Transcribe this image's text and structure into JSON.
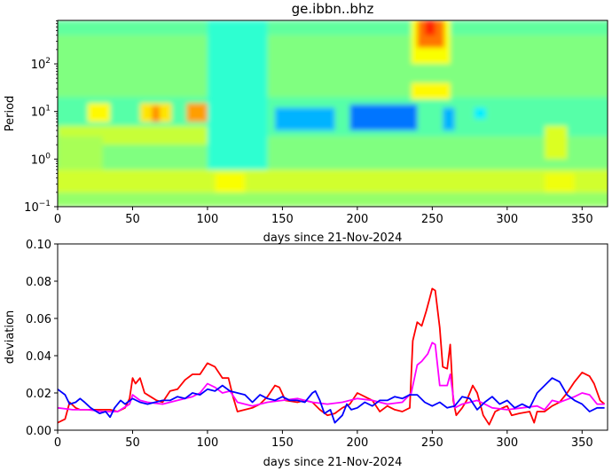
{
  "chart_data": [
    {
      "type": "heatmap",
      "title": "ge.ibbn..bhz",
      "xlabel": "days since 21-Nov-2024",
      "ylabel": "Period",
      "xlim": [
        0,
        367
      ],
      "ylim": [
        0.1,
        820
      ],
      "yscale": "log",
      "xticks": [
        "0",
        "50",
        "100",
        "150",
        "200",
        "250",
        "300",
        "350"
      ],
      "yticks": [
        {
          "base": "10",
          "exp": "−1",
          "value": 0.1
        },
        {
          "base": "10",
          "exp": "0",
          "value": 1
        },
        {
          "base": "10",
          "exp": "1",
          "value": 10
        },
        {
          "base": "10",
          "exp": "2",
          "value": 100
        }
      ],
      "colormap": "jet",
      "value_range": [
        0,
        1
      ],
      "period_bands": [
        {
          "period": [
            0.1,
            0.2
          ],
          "level": 0.52
        },
        {
          "period": [
            0.2,
            0.6
          ],
          "level": 0.58
        },
        {
          "period": [
            0.6,
            3.0
          ],
          "level": 0.5
        },
        {
          "period": [
            3.0,
            20
          ],
          "level": 0.46
        },
        {
          "period": [
            20,
            400
          ],
          "level": 0.5
        },
        {
          "period": [
            400,
            820
          ],
          "level": 0.47
        }
      ],
      "patches": [
        {
          "days": [
            0,
            100
          ],
          "period": [
            2,
            5
          ],
          "level": 0.57
        },
        {
          "days": [
            20,
            35
          ],
          "period": [
            6,
            15
          ],
          "level": 0.63
        },
        {
          "days": [
            55,
            76
          ],
          "period": [
            6,
            15
          ],
          "level": 0.65
        },
        {
          "days": [
            63,
            68
          ],
          "period": [
            6,
            13
          ],
          "level": 0.74
        },
        {
          "days": [
            86,
            102
          ],
          "period": [
            6,
            15
          ],
          "level": 0.72
        },
        {
          "days": [
            100,
            140
          ],
          "period": [
            0.6,
            820
          ],
          "level": 0.42
        },
        {
          "days": [
            105,
            125
          ],
          "period": [
            0.2,
            0.5
          ],
          "level": 0.62
        },
        {
          "days": [
            145,
            185
          ],
          "period": [
            4,
            12
          ],
          "level": 0.3
        },
        {
          "days": [
            195,
            240
          ],
          "period": [
            4,
            14
          ],
          "level": 0.24
        },
        {
          "days": [
            257,
            265
          ],
          "period": [
            4,
            12
          ],
          "level": 0.3
        },
        {
          "days": [
            278,
            286
          ],
          "period": [
            7,
            12
          ],
          "level": 0.36
        },
        {
          "days": [
            236,
            262
          ],
          "period": [
            18,
            40
          ],
          "level": 0.63
        },
        {
          "days": [
            236,
            262
          ],
          "period": [
            100,
            820
          ],
          "level": 0.62
        },
        {
          "days": [
            240,
            258
          ],
          "period": [
            220,
            820
          ],
          "level": 0.76
        },
        {
          "days": [
            245,
            252
          ],
          "period": [
            400,
            820
          ],
          "level": 0.84
        },
        {
          "days": [
            325,
            340
          ],
          "period": [
            1,
            5
          ],
          "level": 0.59
        },
        {
          "days": [
            325,
            345
          ],
          "period": [
            0.2,
            0.5
          ],
          "level": 0.61
        },
        {
          "days": [
            0,
            30
          ],
          "period": [
            0.6,
            3
          ],
          "level": 0.54
        }
      ]
    },
    {
      "type": "line",
      "xlabel": "days since 21-Nov-2024",
      "ylabel": "deviation",
      "xlim": [
        0,
        367
      ],
      "ylim": [
        0,
        0.1
      ],
      "xticks": [
        "0",
        "50",
        "100",
        "150",
        "200",
        "250",
        "300",
        "350"
      ],
      "yticks": [
        "0.00",
        "0.02",
        "0.04",
        "0.06",
        "0.08",
        "0.10"
      ],
      "grid": false,
      "series": [
        {
          "color": "#ff0000",
          "x": [
            0,
            5,
            8,
            12,
            15,
            25,
            35,
            40,
            45,
            48,
            50,
            52,
            55,
            58,
            62,
            66,
            70,
            75,
            80,
            85,
            90,
            95,
            100,
            105,
            110,
            114,
            117,
            120,
            125,
            130,
            135,
            140,
            145,
            148,
            152,
            160,
            165,
            170,
            175,
            180,
            185,
            190,
            195,
            200,
            205,
            210,
            215,
            220,
            225,
            230,
            235,
            237,
            240,
            243,
            246,
            248,
            250,
            252,
            255,
            257,
            260,
            262,
            264,
            266,
            270,
            273,
            277,
            280,
            284,
            288,
            292,
            297,
            300,
            303,
            308,
            315,
            318,
            320,
            325,
            330,
            335,
            340,
            345,
            350,
            355,
            358,
            362,
            365
          ],
          "y": [
            0.004,
            0.006,
            0.015,
            0.012,
            0.011,
            0.011,
            0.011,
            0.01,
            0.012,
            0.017,
            0.028,
            0.025,
            0.028,
            0.02,
            0.018,
            0.016,
            0.015,
            0.021,
            0.022,
            0.027,
            0.03,
            0.03,
            0.036,
            0.034,
            0.028,
            0.028,
            0.018,
            0.01,
            0.011,
            0.012,
            0.014,
            0.018,
            0.024,
            0.023,
            0.016,
            0.015,
            0.016,
            0.015,
            0.011,
            0.008,
            0.009,
            0.012,
            0.014,
            0.02,
            0.018,
            0.016,
            0.01,
            0.013,
            0.011,
            0.01,
            0.012,
            0.048,
            0.058,
            0.056,
            0.064,
            0.07,
            0.076,
            0.075,
            0.055,
            0.034,
            0.033,
            0.046,
            0.016,
            0.008,
            0.012,
            0.016,
            0.024,
            0.02,
            0.008,
            0.003,
            0.01,
            0.012,
            0.013,
            0.008,
            0.009,
            0.01,
            0.004,
            0.01,
            0.01,
            0.013,
            0.015,
            0.02,
            0.026,
            0.031,
            0.029,
            0.025,
            0.016,
            0.014
          ]
        },
        {
          "color": "#ff00ff",
          "x": [
            0,
            10,
            20,
            30,
            40,
            48,
            50,
            55,
            60,
            70,
            80,
            90,
            95,
            100,
            105,
            110,
            115,
            120,
            130,
            140,
            150,
            160,
            170,
            180,
            190,
            200,
            210,
            220,
            230,
            236,
            240,
            243,
            247,
            250,
            252,
            255,
            260,
            262,
            265,
            270,
            280,
            285,
            290,
            300,
            310,
            320,
            325,
            330,
            335,
            345,
            350,
            355,
            360,
            365
          ],
          "y": [
            0.012,
            0.011,
            0.011,
            0.01,
            0.01,
            0.014,
            0.019,
            0.016,
            0.015,
            0.014,
            0.016,
            0.018,
            0.02,
            0.025,
            0.023,
            0.02,
            0.021,
            0.015,
            0.013,
            0.015,
            0.016,
            0.017,
            0.015,
            0.014,
            0.015,
            0.017,
            0.016,
            0.014,
            0.015,
            0.02,
            0.035,
            0.037,
            0.041,
            0.047,
            0.046,
            0.024,
            0.024,
            0.03,
            0.012,
            0.014,
            0.016,
            0.014,
            0.012,
            0.011,
            0.012,
            0.013,
            0.011,
            0.016,
            0.015,
            0.018,
            0.02,
            0.019,
            0.014,
            0.014
          ]
        },
        {
          "color": "#0000ff",
          "x": [
            0,
            5,
            8,
            12,
            15,
            18,
            22,
            28,
            32,
            35,
            38,
            42,
            45,
            50,
            55,
            60,
            65,
            70,
            75,
            80,
            85,
            90,
            95,
            100,
            105,
            110,
            115,
            120,
            125,
            130,
            135,
            140,
            145,
            150,
            155,
            160,
            165,
            170,
            172,
            175,
            178,
            182,
            185,
            190,
            193,
            196,
            200,
            205,
            210,
            215,
            220,
            225,
            230,
            235,
            240,
            245,
            250,
            255,
            260,
            265,
            270,
            275,
            280,
            285,
            290,
            295,
            300,
            305,
            310,
            315,
            320,
            325,
            330,
            335,
            340,
            345,
            350,
            355,
            360,
            365
          ],
          "y": [
            0.022,
            0.019,
            0.014,
            0.015,
            0.017,
            0.015,
            0.012,
            0.009,
            0.01,
            0.007,
            0.012,
            0.016,
            0.014,
            0.017,
            0.015,
            0.014,
            0.015,
            0.016,
            0.016,
            0.018,
            0.017,
            0.02,
            0.019,
            0.022,
            0.021,
            0.024,
            0.021,
            0.02,
            0.019,
            0.015,
            0.019,
            0.017,
            0.016,
            0.018,
            0.016,
            0.016,
            0.015,
            0.02,
            0.021,
            0.016,
            0.009,
            0.011,
            0.004,
            0.008,
            0.014,
            0.011,
            0.012,
            0.015,
            0.013,
            0.016,
            0.016,
            0.018,
            0.017,
            0.019,
            0.019,
            0.015,
            0.013,
            0.015,
            0.012,
            0.013,
            0.018,
            0.017,
            0.011,
            0.015,
            0.018,
            0.014,
            0.016,
            0.012,
            0.014,
            0.012,
            0.02,
            0.024,
            0.028,
            0.026,
            0.019,
            0.016,
            0.014,
            0.01,
            0.012,
            0.012
          ]
        }
      ]
    }
  ]
}
